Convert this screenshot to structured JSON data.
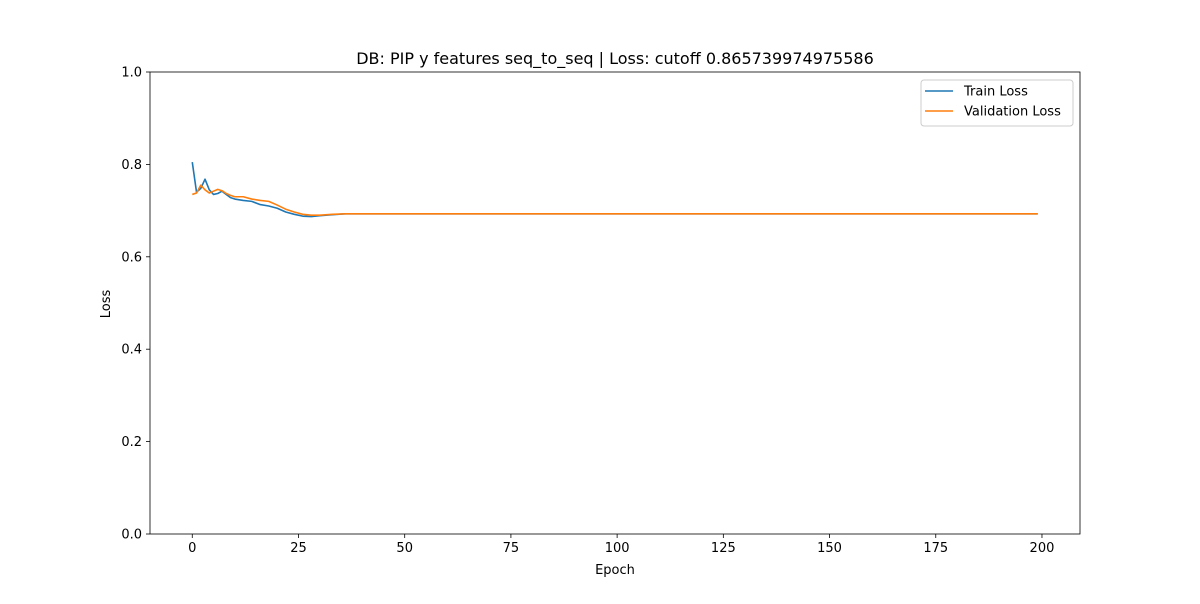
{
  "chart_data": {
    "type": "line",
    "title": "DB: PIP y features seq_to_seq | Loss: cutoff 0.865739974975586",
    "xlabel": "Epoch",
    "ylabel": "Loss",
    "xlim": [
      -9.95,
      208.95
    ],
    "ylim": [
      0.0,
      1.0
    ],
    "xticks": [
      0,
      25,
      50,
      75,
      100,
      125,
      150,
      175,
      200
    ],
    "yticks": [
      0.0,
      0.2,
      0.4,
      0.6,
      0.8,
      1.0
    ],
    "xtick_labels": [
      "0",
      "25",
      "50",
      "75",
      "100",
      "125",
      "150",
      "175",
      "200"
    ],
    "ytick_labels": [
      "0.0",
      "0.2",
      "0.4",
      "0.6",
      "0.8",
      "1.0"
    ],
    "grid": false,
    "legend_position": "top-right",
    "series": [
      {
        "name": "Train Loss",
        "color": "#1f77b4",
        "points": [
          [
            0,
            0.805
          ],
          [
            1,
            0.74
          ],
          [
            2,
            0.748
          ],
          [
            3,
            0.768
          ],
          [
            4,
            0.745
          ],
          [
            5,
            0.735
          ],
          [
            6,
            0.737
          ],
          [
            7,
            0.742
          ],
          [
            8,
            0.735
          ],
          [
            9,
            0.728
          ],
          [
            10,
            0.725
          ],
          [
            12,
            0.722
          ],
          [
            14,
            0.72
          ],
          [
            16,
            0.713
          ],
          [
            18,
            0.71
          ],
          [
            20,
            0.705
          ],
          [
            22,
            0.697
          ],
          [
            24,
            0.692
          ],
          [
            26,
            0.688
          ],
          [
            28,
            0.687
          ],
          [
            30,
            0.689
          ],
          [
            33,
            0.691
          ],
          [
            36,
            0.693
          ],
          [
            40,
            0.693
          ],
          [
            199,
            0.693
          ]
        ]
      },
      {
        "name": "Validation Loss",
        "color": "#ff7f0e",
        "points": [
          [
            0,
            0.735
          ],
          [
            1,
            0.738
          ],
          [
            2,
            0.755
          ],
          [
            3,
            0.745
          ],
          [
            4,
            0.738
          ],
          [
            5,
            0.742
          ],
          [
            6,
            0.746
          ],
          [
            7,
            0.743
          ],
          [
            8,
            0.737
          ],
          [
            9,
            0.733
          ],
          [
            10,
            0.73
          ],
          [
            12,
            0.73
          ],
          [
            14,
            0.725
          ],
          [
            16,
            0.722
          ],
          [
            18,
            0.72
          ],
          [
            20,
            0.712
          ],
          [
            22,
            0.703
          ],
          [
            24,
            0.697
          ],
          [
            26,
            0.692
          ],
          [
            28,
            0.69
          ],
          [
            30,
            0.69
          ],
          [
            33,
            0.692
          ],
          [
            36,
            0.693
          ],
          [
            40,
            0.693
          ],
          [
            199,
            0.693
          ]
        ]
      }
    ]
  }
}
